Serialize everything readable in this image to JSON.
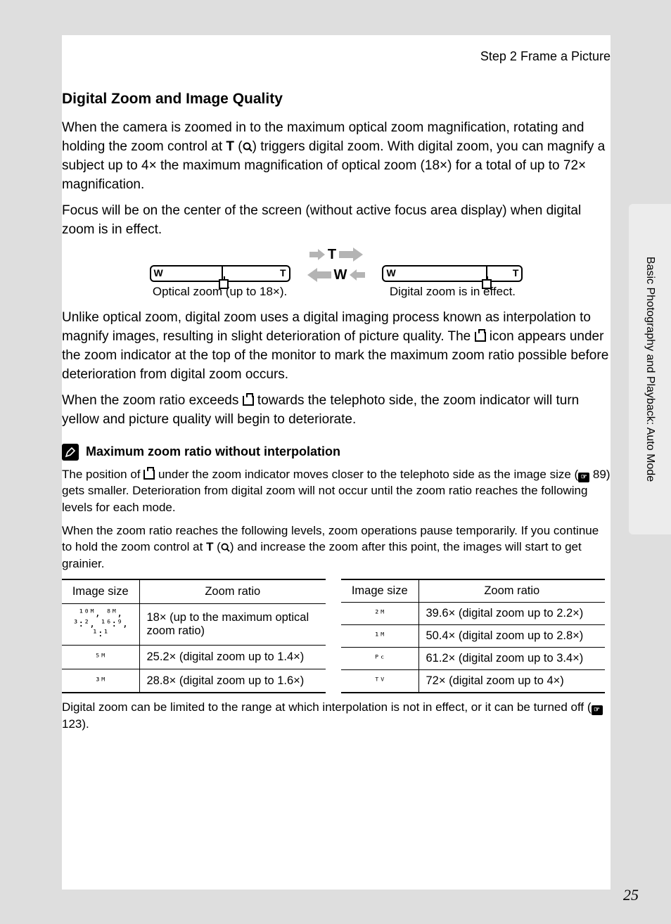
{
  "breadcrumb": "Step 2 Frame a Picture",
  "heading": "Digital Zoom and Image Quality",
  "para1_pre": "When the camera is zoomed in to the maximum optical zoom magnification, rotating and holding the zoom control at ",
  "t_label": "T",
  "para1_post": ") triggers digital zoom. With digital zoom, you can magnify a subject up to 4× the maximum magnification of optical zoom (18×) for a total of up to 72× magnification.",
  "para2": "Focus will be on the center of the screen (without active focus area display) when digital zoom is in effect.",
  "diagram": {
    "left_caption": "Optical zoom (up to 18×).",
    "right_caption": "Digital zoom is in effect.",
    "w_label": "W",
    "t_label": "T",
    "arrow_t": "T",
    "arrow_w": "W"
  },
  "para3_pre": "Unlike optical zoom, digital zoom uses a digital imaging process known as interpolation to magnify images, resulting in slight deterioration of picture quality. The ",
  "para3_post": " icon appears under the zoom indicator at the top of the monitor to mark the maximum zoom ratio possible before deterioration from digital zoom occurs.",
  "para4_pre": "When the zoom ratio exceeds ",
  "para4_post": " towards the telephoto side, the zoom indicator will turn yellow and picture quality will begin to deteriorate.",
  "note": {
    "title": "Maximum zoom ratio without interpolation",
    "p1_pre": "The position of ",
    "p1_mid": " under the zoom indicator moves closer to the telephoto side as the image size (",
    "p1_ref": "89",
    "p1_post": ") gets smaller. Deterioration from digital zoom will not occur until the zoom ratio reaches the following levels for each mode.",
    "p2_pre": "When the zoom ratio reaches the following levels, zoom operations pause temporarily. If you continue to hold the zoom control at ",
    "p2_post": ") and increase the zoom after this point, the images will start to get grainier."
  },
  "tables": {
    "header_size": "Image size",
    "header_ratio": "Zoom ratio",
    "left": [
      {
        "size": "10M 8M 3:2 16:9 1:1",
        "size_html": "¹⁰ᴹ, ⁸ᴹ,<br>³:², ¹⁶:⁹,<br>¹:¹",
        "ratio": "18× (up to the maximum optical zoom ratio)"
      },
      {
        "size": "5M",
        "size_html": "⁵ᴹ",
        "ratio": "25.2× (digital zoom up to 1.4×)"
      },
      {
        "size": "3M",
        "size_html": "³ᴹ",
        "ratio": "28.8× (digital zoom up to 1.6×)"
      }
    ],
    "right": [
      {
        "size": "2M",
        "size_html": "²ᴹ",
        "ratio": "39.6× (digital zoom up to 2.2×)"
      },
      {
        "size": "1M",
        "size_html": "¹ᴹ",
        "ratio": "50.4× (digital zoom up to 2.8×)"
      },
      {
        "size": "PC",
        "size_html": "ᴾᶜ",
        "ratio": "61.2× (digital zoom up to 3.4×)"
      },
      {
        "size": "TV",
        "size_html": "ᵀⱽ",
        "ratio": "72× (digital zoom up to 4×)"
      }
    ]
  },
  "footer_pre": "Digital zoom can be limited to the range at which interpolation is not in effect, or it can be turned off (",
  "footer_ref": "123",
  "footer_post": ").",
  "side_tab": "Basic Photography and Playback: Auto Mode",
  "page_number": "25",
  "colors": {
    "page_bg": "#dedede",
    "content_bg": "#ffffff",
    "tab_bg": "#ececec",
    "text": "#000000",
    "arrow_gray": "#b4b4b4"
  }
}
